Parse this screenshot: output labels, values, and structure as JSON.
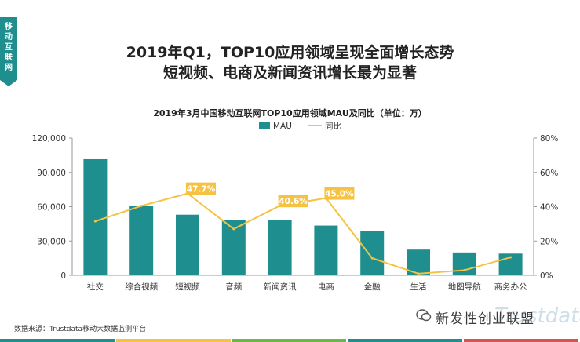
{
  "side_tab": [
    "移",
    "动",
    "互",
    "联",
    "网"
  ],
  "headline_line1": "2019年Q1，TOP10应用领域呈现全面增长态势",
  "headline_line2": "短视频、电商及新闻资讯增长最为显著",
  "source": "数据来源：Trustdata移动大数据监测平台",
  "watermark": "新发性创业联盟",
  "watermark_logo": "Trustdata",
  "colors": {
    "bar": "#1f8e8e",
    "line": "#f5c242",
    "label_bg": "#f5c242",
    "tab": "#1f8e8e"
  },
  "chart_data": {
    "type": "bar",
    "title": "2019年3月中国移动互联网TOP10应用领域MAU及同比（单位：万）",
    "categories": [
      "社交",
      "综合视频",
      "短视频",
      "音频",
      "新闻资讯",
      "电商",
      "金融",
      "生活",
      "地图导航",
      "商务办公"
    ],
    "legend": {
      "placement": "top",
      "entries": [
        "MAU",
        "同比"
      ]
    },
    "series": [
      {
        "name": "MAU",
        "type": "bar",
        "axis": "left",
        "values": [
          101500,
          61000,
          53000,
          48500,
          48000,
          43500,
          39000,
          22500,
          20000,
          19000
        ]
      },
      {
        "name": "同比",
        "type": "line",
        "axis": "right",
        "values": [
          31.5,
          40.5,
          47.7,
          27.0,
          40.6,
          45.0,
          10.0,
          1.0,
          3.0,
          10.5
        ]
      }
    ],
    "highlight_labels": [
      {
        "index": 2,
        "text": "47.7%"
      },
      {
        "index": 4,
        "text": "40.6%"
      },
      {
        "index": 5,
        "text": "45.0%"
      }
    ],
    "y_left": {
      "min": 0,
      "max": 120000,
      "ticks": [
        0,
        30000,
        60000,
        90000,
        120000
      ],
      "tick_labels": [
        "0",
        "30,000",
        "60,000",
        "90,000",
        "120,000"
      ]
    },
    "y_right": {
      "min": 0,
      "max": 80,
      "ticks": [
        0,
        20,
        40,
        60,
        80
      ],
      "tick_labels": [
        "0%",
        "20%",
        "40%",
        "60%",
        "80%"
      ]
    },
    "grid": false
  },
  "footer_colors": [
    "#1f8e8e",
    "#f5c242",
    "#6bb84a",
    "#1f8e8e",
    "#d9534f"
  ]
}
